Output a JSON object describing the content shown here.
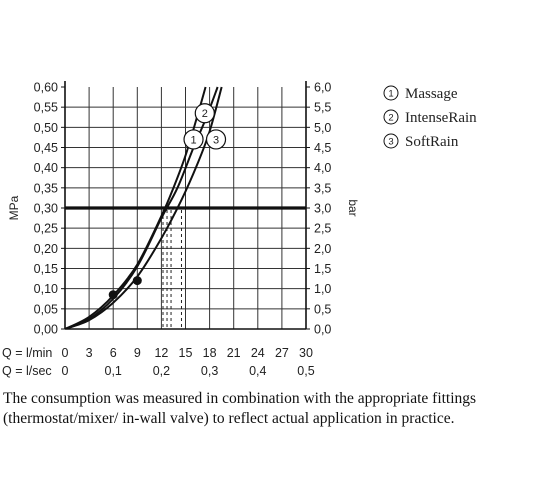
{
  "chart_data": {
    "type": "line",
    "ylabel_left": "MPa",
    "ylabel_right": "bar",
    "y_ticks_left": [
      "0,00",
      "0,05",
      "0,10",
      "0,15",
      "0,20",
      "0,25",
      "0,30",
      "0,35",
      "0,40",
      "0,45",
      "0,50",
      "0,55",
      "0,60"
    ],
    "y_ticks_right": [
      "0,0",
      "0,5",
      "1,0",
      "1,5",
      "2,0",
      "2,5",
      "3,0",
      "3,5",
      "4,0",
      "4,5",
      "5,0",
      "5,5",
      "6,0"
    ],
    "x_row1_label": "Q = l/min",
    "x_row1_ticks": [
      "0",
      "3",
      "6",
      "9",
      "12",
      "15",
      "18",
      "21",
      "24",
      "27",
      "30"
    ],
    "x_row2_label": "Q = l/sec",
    "x_row2_ticks": [
      "0",
      "0,1",
      "0,2",
      "0,3",
      "0,4",
      "0,5"
    ],
    "xlim": [
      0,
      30
    ],
    "ylim": [
      0,
      0.6
    ],
    "reference_pressure": 0.3,
    "series": [
      {
        "name": "Massage",
        "marker": "1",
        "x": [
          0,
          3,
          6,
          9,
          12,
          13.5,
          15,
          16.5,
          17.5
        ],
        "y": [
          0,
          0.03,
          0.083,
          0.16,
          0.28,
          0.35,
          0.43,
          0.53,
          0.6
        ]
      },
      {
        "name": "IntenseRain",
        "marker": "2",
        "x": [
          0,
          3,
          6,
          9,
          12,
          14,
          16,
          17.5,
          19
        ],
        "y": [
          0,
          0.025,
          0.075,
          0.155,
          0.275,
          0.35,
          0.45,
          0.52,
          0.6
        ]
      },
      {
        "name": "SoftRain",
        "marker": "3",
        "x": [
          0,
          3,
          6,
          9,
          12,
          14.5,
          16.5,
          18,
          19.5
        ],
        "y": [
          0,
          0.022,
          0.065,
          0.13,
          0.225,
          0.32,
          0.41,
          0.49,
          0.6
        ]
      }
    ],
    "points": [
      {
        "x": 6,
        "y": 0.085
      },
      {
        "x": 9,
        "y": 0.12
      }
    ],
    "drop_lines_x": [
      12.2,
      12.7,
      13.2,
      14.5
    ],
    "legend": [
      {
        "symbol": "1",
        "label": "Massage"
      },
      {
        "symbol": "2",
        "label": "IntenseRain"
      },
      {
        "symbol": "3",
        "label": "SoftRain"
      }
    ],
    "legend_position": "top-right",
    "grid": true
  },
  "note": "The consumption was measured in combination with the appropriate fittings (thermostat/mixer/ in-wall valve) to reflect actual application in practice."
}
